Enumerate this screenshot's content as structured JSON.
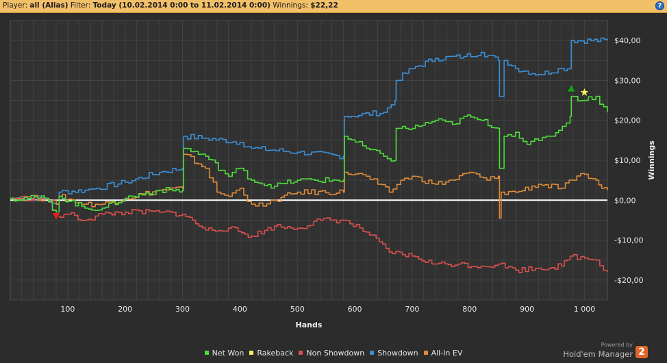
{
  "header": {
    "player_label": "Player:",
    "player_value": "all (Alias)",
    "filter_label": "Filter:",
    "filter_value": "Today (10.02.2014 0:00 to 11.02.2014 0:00)",
    "winnings_label": "Winnings:",
    "winnings_value": "$22,22",
    "help_glyph": "?"
  },
  "branding": {
    "powered_by": "Powered by",
    "name": "Hold'em Manager",
    "logo_glyph": "2"
  },
  "colors": {
    "net_won": "#4ddd3a",
    "rakeback": "#f4f05a",
    "non_showdown": "#d9504d",
    "showdown": "#3b8fd6",
    "all_in_ev": "#e08c3a",
    "zero_line": "#ffffff",
    "grid": "#464646",
    "plot_bg": "#313131"
  },
  "chart_data": {
    "type": "line",
    "xlabel": "Hands",
    "ylabel": "Winnings",
    "xlim": [
      0,
      1040
    ],
    "ylim": [
      -25,
      45
    ],
    "x_ticks": [
      100,
      200,
      300,
      400,
      500,
      600,
      700,
      800,
      900,
      1000
    ],
    "x_tick_labels": [
      "100",
      "200",
      "300",
      "400",
      "500",
      "600",
      "700",
      "800",
      "900",
      "1 000"
    ],
    "y_ticks": [
      40,
      30,
      20,
      10,
      0,
      -10,
      -20
    ],
    "y_tick_labels": [
      "$40,00",
      "$30,00",
      "$20,00",
      "$10,00",
      "$0,00",
      "-$10,00",
      "-$20,00"
    ],
    "grid": true,
    "legend_position": "bottom-center",
    "y_axis_side": "right",
    "series": [
      {
        "name": "Showdown",
        "color": "#3b8fd6",
        "points": [
          [
            0,
            0.5
          ],
          [
            60,
            0.5
          ],
          [
            80,
            -1
          ],
          [
            85,
            2
          ],
          [
            130,
            2.5
          ],
          [
            150,
            3
          ],
          [
            200,
            4.5
          ],
          [
            260,
            7
          ],
          [
            300,
            8
          ],
          [
            302,
            16
          ],
          [
            340,
            15.5
          ],
          [
            400,
            14.5
          ],
          [
            420,
            13
          ],
          [
            500,
            12
          ],
          [
            580,
            11
          ],
          [
            582,
            21
          ],
          [
            650,
            22
          ],
          [
            670,
            25
          ],
          [
            672,
            30
          ],
          [
            700,
            33
          ],
          [
            740,
            35.5
          ],
          [
            790,
            36
          ],
          [
            820,
            37
          ],
          [
            850,
            35
          ],
          [
            852,
            26
          ],
          [
            860,
            35
          ],
          [
            880,
            33
          ],
          [
            920,
            31.5
          ],
          [
            960,
            33
          ],
          [
            975,
            33
          ],
          [
            977,
            40
          ],
          [
            1040,
            40
          ]
        ]
      },
      {
        "name": "All-In EV",
        "color": "#e08c3a",
        "points": [
          [
            0,
            0.5
          ],
          [
            60,
            0.5
          ],
          [
            80,
            -1
          ],
          [
            85,
            1
          ],
          [
            130,
            -1
          ],
          [
            160,
            -1
          ],
          [
            200,
            0.5
          ],
          [
            260,
            2.5
          ],
          [
            300,
            3
          ],
          [
            302,
            11.5
          ],
          [
            340,
            8
          ],
          [
            360,
            2
          ],
          [
            380,
            1
          ],
          [
            400,
            3
          ],
          [
            420,
            -1
          ],
          [
            440,
            -1.5
          ],
          [
            460,
            0
          ],
          [
            500,
            2
          ],
          [
            580,
            2
          ],
          [
            582,
            7
          ],
          [
            620,
            6
          ],
          [
            640,
            4
          ],
          [
            660,
            2
          ],
          [
            680,
            5
          ],
          [
            700,
            6
          ],
          [
            740,
            4
          ],
          [
            770,
            5
          ],
          [
            800,
            7
          ],
          [
            830,
            5
          ],
          [
            850,
            6
          ],
          [
            852,
            -4.5
          ],
          [
            855,
            2
          ],
          [
            880,
            2
          ],
          [
            920,
            4
          ],
          [
            960,
            3
          ],
          [
            980,
            5
          ],
          [
            1000,
            6.5
          ],
          [
            1020,
            5
          ],
          [
            1030,
            3
          ],
          [
            1040,
            2.5
          ]
        ]
      },
      {
        "name": "Non Showdown",
        "color": "#d9504d",
        "points": [
          [
            0,
            0.5
          ],
          [
            60,
            0.5
          ],
          [
            80,
            -4
          ],
          [
            100,
            -3.5
          ],
          [
            130,
            -5
          ],
          [
            160,
            -3.5
          ],
          [
            200,
            -3
          ],
          [
            260,
            -3
          ],
          [
            300,
            -3.5
          ],
          [
            340,
            -7.5
          ],
          [
            380,
            -7
          ],
          [
            420,
            -9
          ],
          [
            460,
            -6.5
          ],
          [
            500,
            -7
          ],
          [
            540,
            -5
          ],
          [
            580,
            -5
          ],
          [
            620,
            -8
          ],
          [
            660,
            -13
          ],
          [
            700,
            -14
          ],
          [
            740,
            -16
          ],
          [
            780,
            -16
          ],
          [
            820,
            -16.5
          ],
          [
            850,
            -16
          ],
          [
            880,
            -17.5
          ],
          [
            920,
            -17
          ],
          [
            960,
            -16.5
          ],
          [
            975,
            -14
          ],
          [
            1000,
            -14.5
          ],
          [
            1020,
            -15
          ],
          [
            1040,
            -18
          ]
        ]
      },
      {
        "name": "Net Won",
        "color": "#4ddd3a",
        "points": [
          [
            0,
            0.5
          ],
          [
            60,
            0.5
          ],
          [
            80,
            -3
          ],
          [
            85,
            1
          ],
          [
            130,
            -2
          ],
          [
            160,
            -2
          ],
          [
            200,
            0.5
          ],
          [
            260,
            2.5
          ],
          [
            300,
            2.5
          ],
          [
            302,
            13
          ],
          [
            340,
            11
          ],
          [
            380,
            6
          ],
          [
            400,
            8
          ],
          [
            420,
            5
          ],
          [
            460,
            3.5
          ],
          [
            500,
            5
          ],
          [
            580,
            5
          ],
          [
            582,
            16
          ],
          [
            620,
            13
          ],
          [
            650,
            11
          ],
          [
            670,
            10
          ],
          [
            672,
            18
          ],
          [
            700,
            18
          ],
          [
            740,
            20
          ],
          [
            770,
            19
          ],
          [
            790,
            21
          ],
          [
            820,
            20
          ],
          [
            850,
            18
          ],
          [
            852,
            8
          ],
          [
            860,
            16
          ],
          [
            880,
            17
          ],
          [
            900,
            14
          ],
          [
            920,
            15
          ],
          [
            940,
            16
          ],
          [
            955,
            17.5
          ],
          [
            975,
            21
          ],
          [
            977,
            26
          ],
          [
            1000,
            25
          ],
          [
            1020,
            26
          ],
          [
            1040,
            22
          ]
        ]
      }
    ],
    "markers": [
      {
        "name": "min",
        "shape": "triangle-down",
        "color": "#e02020",
        "x": 80,
        "y": -4
      },
      {
        "name": "max",
        "shape": "triangle-up",
        "color": "#1d9b1d",
        "x": 977,
        "y": 28
      },
      {
        "name": "rakeback-star",
        "shape": "star",
        "color": "#f4f05a",
        "x": 1000,
        "y": 27
      }
    ],
    "legend": [
      {
        "label": "Net Won",
        "color": "#4ddd3a"
      },
      {
        "label": "Rakeback",
        "color": "#f4f05a"
      },
      {
        "label": "Non Showdown",
        "color": "#d9504d"
      },
      {
        "label": "Showdown",
        "color": "#3b8fd6"
      },
      {
        "label": "All-In EV",
        "color": "#e08c3a"
      }
    ]
  }
}
